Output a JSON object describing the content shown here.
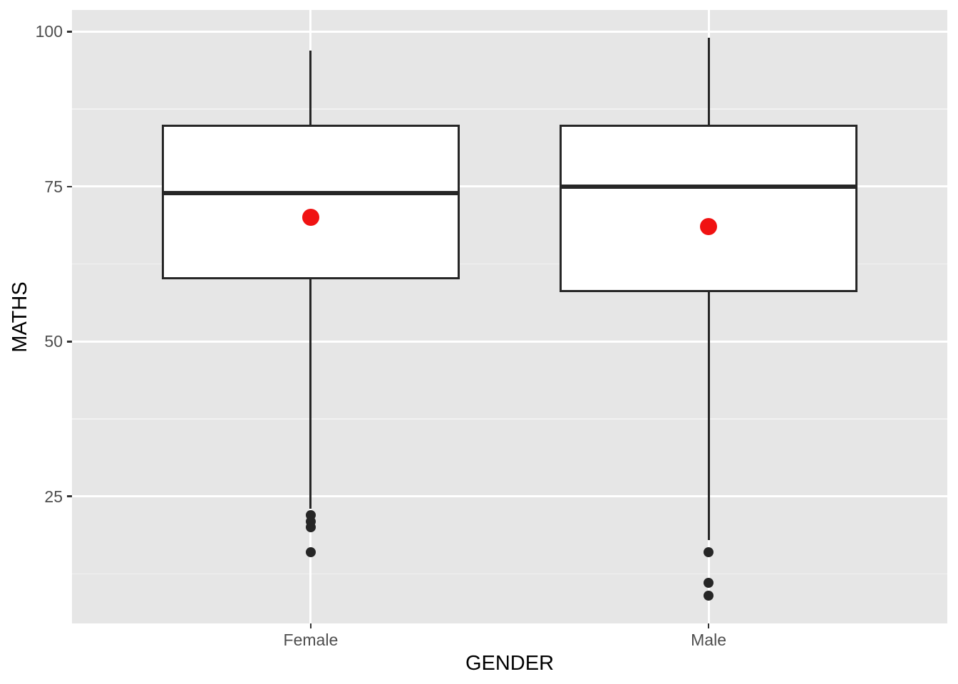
{
  "figure": {
    "background": "#FFFFFF",
    "panel_background": "#E6E6E6",
    "gridline_color": "#FFFFFF",
    "box_fill": "#FFFFFF",
    "box_stroke": "#262626",
    "mean_color": "#F01212",
    "outlier_color": "#262626",
    "tick_label_color": "#4D4D4D",
    "axis_title_color": "#000000"
  },
  "chart_data": {
    "type": "boxplot",
    "title": "",
    "xlabel": "GENDER",
    "ylabel": "MATHS",
    "categories": [
      "Female",
      "Male"
    ],
    "y_ticks": [
      25,
      50,
      75,
      100
    ],
    "minor_gridlines": [
      12.5,
      37.5,
      62.5,
      87.5
    ],
    "ylim": [
      4.5,
      103.5
    ],
    "grid": "major+minor horizontal, vertical major at each category",
    "legend": "none",
    "series": [
      {
        "name": "Female",
        "whisker_low": 23,
        "q1": 60,
        "median": 74,
        "q3": 85,
        "whisker_high": 97,
        "mean": 70,
        "outliers": [
          22,
          21,
          20,
          16
        ]
      },
      {
        "name": "Male",
        "whisker_low": 18,
        "q1": 58,
        "median": 75,
        "q3": 85,
        "whisker_high": 99,
        "mean": 68.5,
        "outliers": [
          16,
          11,
          9
        ]
      }
    ]
  }
}
